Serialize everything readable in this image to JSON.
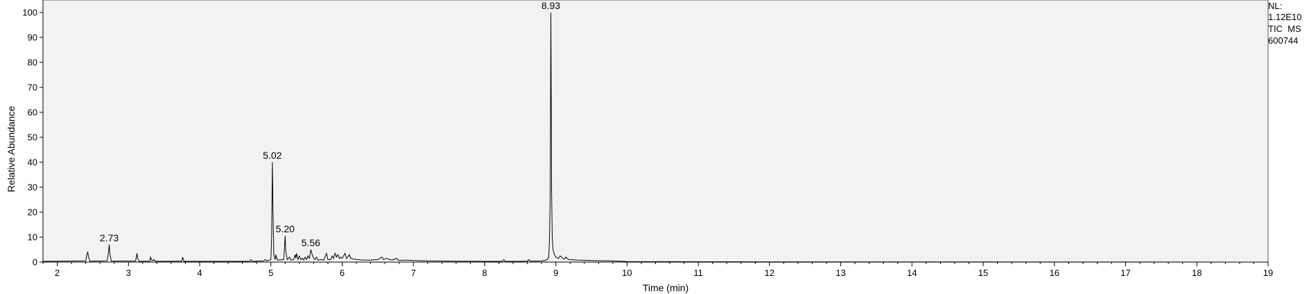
{
  "info": {
    "nl_label": "NL:",
    "nl_value": "1.12E10",
    "scan_filter": "TIC  MS",
    "file_id": "600744"
  },
  "chart_data": {
    "type": "line",
    "title": "",
    "xlabel": "Time (min)",
    "ylabel": "Relative Abundance",
    "xlim": [
      1.8,
      19
    ],
    "ylim": [
      0,
      100
    ],
    "xticks": [
      2,
      3,
      4,
      5,
      6,
      7,
      8,
      9,
      10,
      11,
      12,
      13,
      14,
      15,
      16,
      17,
      18,
      19
    ],
    "yticks": [
      0,
      10,
      20,
      30,
      40,
      50,
      60,
      70,
      80,
      90,
      100
    ],
    "grid": false,
    "colors": {
      "line": "#000000",
      "plot_bg": "#f2f2f2",
      "frame": "#555555"
    },
    "peak_labels": [
      {
        "x": 2.73,
        "y": 7,
        "label": "2.73"
      },
      {
        "x": 5.02,
        "y": 40,
        "label": "5.02"
      },
      {
        "x": 5.2,
        "y": 10.5,
        "label": "5.20"
      },
      {
        "x": 5.56,
        "y": 5,
        "label": "5.56"
      },
      {
        "x": 8.93,
        "y": 100,
        "label": "8.93"
      }
    ],
    "series": [
      {
        "x": [
          1.8,
          2.4,
          2.42,
          2.43,
          2.44,
          2.46,
          2.7,
          2.72,
          2.73,
          2.74,
          2.76,
          3.1,
          3.12,
          3.13,
          3.15,
          3.3,
          3.31,
          3.33,
          3.36,
          3.38,
          3.4,
          3.75,
          3.76,
          3.78,
          4.7,
          4.72,
          4.74,
          4.9,
          4.92,
          4.94,
          5.0,
          5.01,
          5.02,
          5.03,
          5.04,
          5.06,
          5.07,
          5.09,
          5.18,
          5.19,
          5.2,
          5.21,
          5.23,
          5.26,
          5.28,
          5.32,
          5.34,
          5.35,
          5.36,
          5.38,
          5.4,
          5.42,
          5.44,
          5.46,
          5.48,
          5.5,
          5.52,
          5.54,
          5.56,
          5.58,
          5.6,
          5.62,
          5.64,
          5.66,
          5.7,
          5.74,
          5.76,
          5.78,
          5.8,
          5.84,
          5.86,
          5.88,
          5.9,
          5.92,
          5.94,
          5.96,
          5.98,
          6.0,
          6.02,
          6.04,
          6.06,
          6.08,
          6.1,
          6.12,
          6.2,
          6.3,
          6.4,
          6.5,
          6.56,
          6.58,
          6.62,
          6.7,
          6.76,
          6.78,
          6.8,
          6.9,
          7.0,
          7.2,
          7.5,
          8.0,
          8.25,
          8.27,
          8.29,
          8.5,
          8.6,
          8.62,
          8.64,
          8.8,
          8.84,
          8.88,
          8.9,
          8.91,
          8.92,
          8.925,
          8.93,
          8.935,
          8.94,
          8.95,
          8.96,
          8.98,
          9.0,
          9.04,
          9.06,
          9.1,
          9.12,
          9.14,
          9.18,
          9.2,
          9.3,
          9.5,
          9.8,
          9.9,
          10.0,
          12.0,
          15.0,
          19.0
        ],
        "y": [
          0.3,
          0.5,
          3.5,
          4.0,
          2.0,
          0.4,
          0.5,
          4.0,
          7.0,
          3.0,
          0.4,
          0.5,
          3.5,
          1.5,
          0.3,
          0.4,
          2.0,
          0.5,
          1.0,
          0.3,
          0.3,
          0.4,
          2.0,
          0.3,
          0.3,
          1.0,
          0.3,
          0.5,
          1.0,
          0.5,
          1.0,
          10.0,
          40.0,
          20.0,
          3.0,
          1.0,
          3.0,
          0.8,
          1.0,
          6.0,
          10.5,
          4.0,
          1.0,
          2.0,
          0.8,
          1.0,
          3.0,
          1.5,
          3.5,
          1.0,
          2.5,
          1.0,
          1.5,
          0.8,
          2.0,
          1.0,
          2.5,
          1.5,
          5.0,
          3.0,
          1.5,
          1.0,
          2.0,
          0.8,
          1.0,
          0.8,
          2.0,
          3.5,
          1.0,
          1.0,
          2.5,
          1.5,
          3.5,
          2.0,
          3.0,
          1.5,
          2.0,
          1.5,
          2.5,
          3.5,
          1.5,
          2.0,
          3.0,
          1.5,
          1.0,
          0.8,
          0.8,
          1.0,
          2.0,
          1.0,
          1.5,
          0.8,
          1.5,
          1.0,
          0.7,
          0.8,
          0.6,
          0.5,
          0.4,
          0.3,
          0.3,
          1.0,
          0.3,
          0.3,
          0.4,
          1.0,
          0.4,
          0.5,
          0.6,
          1.0,
          2.0,
          8.0,
          25.0,
          55.0,
          100.0,
          70.0,
          30.0,
          10.0,
          5.0,
          3.0,
          2.0,
          1.5,
          2.5,
          1.5,
          1.2,
          2.0,
          1.0,
          1.0,
          0.8,
          0.6,
          0.5,
          0.4,
          0.2,
          0.1,
          0.05,
          0.0
        ]
      }
    ]
  }
}
